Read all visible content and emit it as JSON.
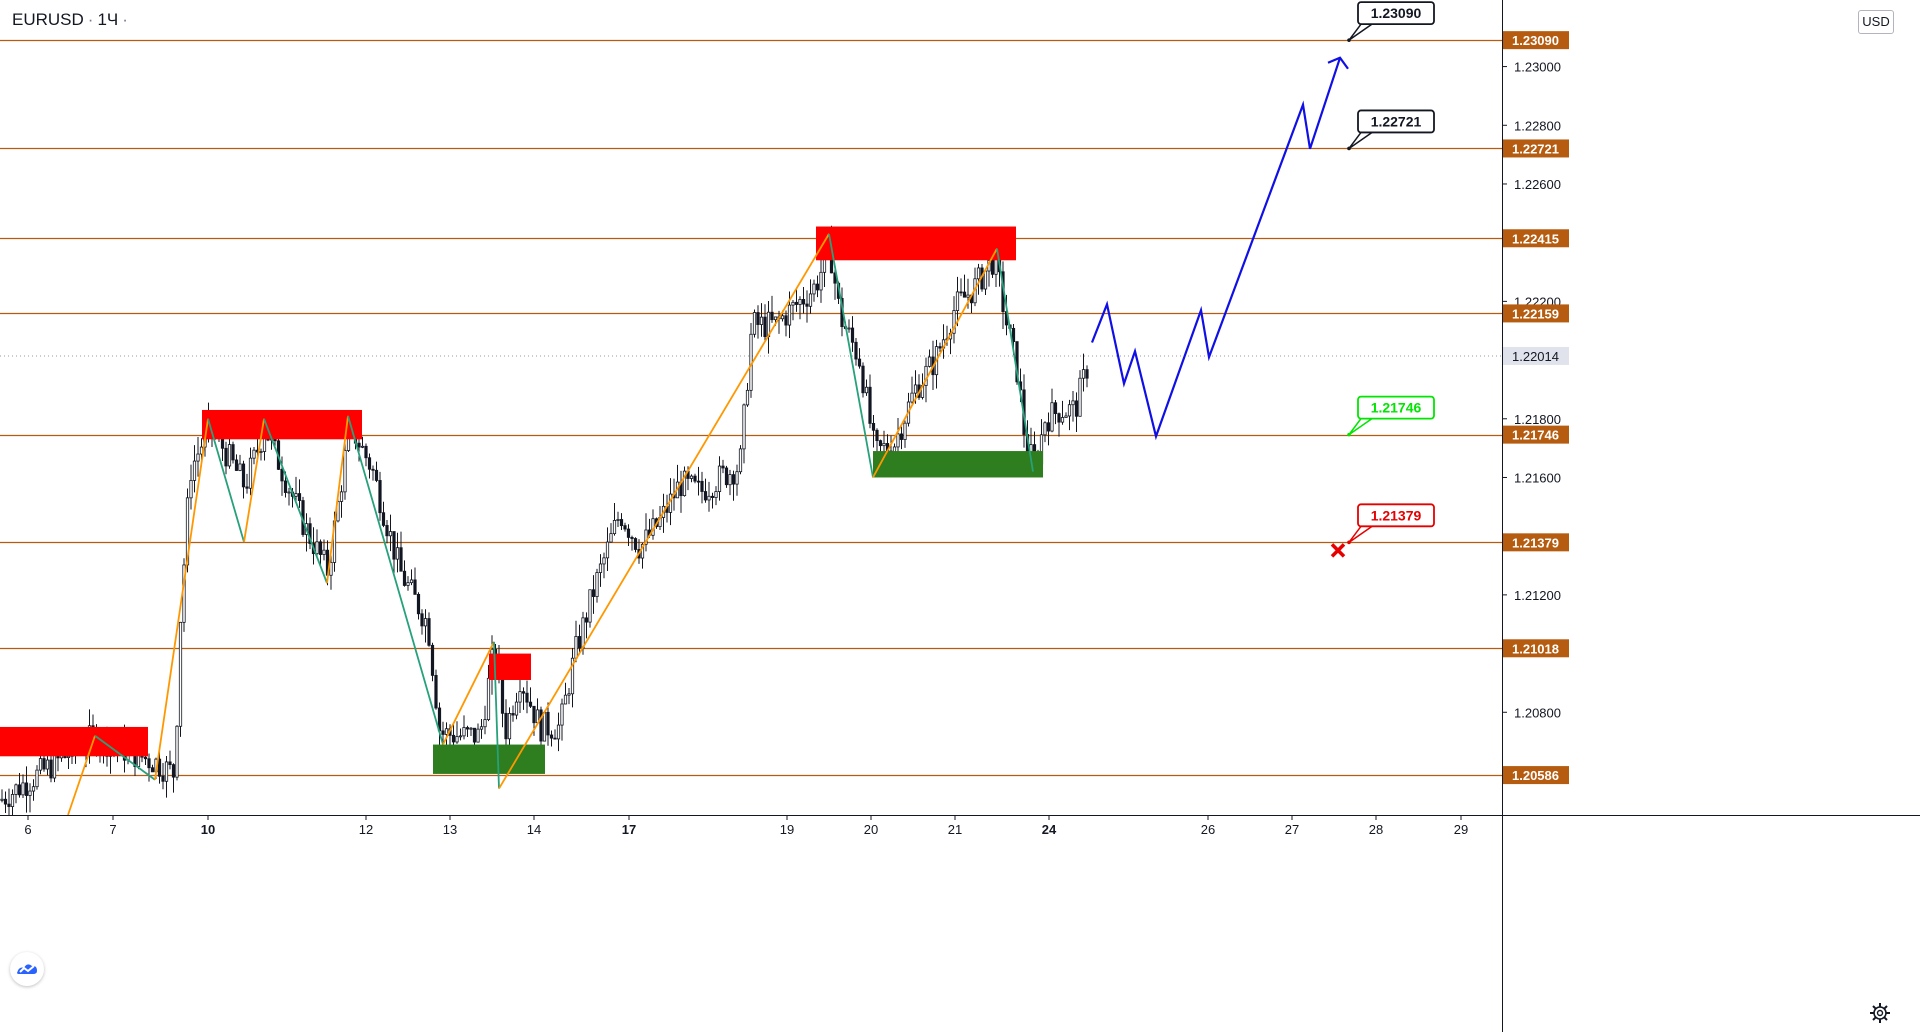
{
  "header": {
    "symbol": "EURUSD",
    "interval": "1Ч",
    "currency": "USD"
  },
  "icons": {
    "logo": "tradingview-logo-icon",
    "settings": "gear-icon",
    "stop": "cross-icon"
  },
  "colors": {
    "level_line": "#b55c10",
    "zone_red": "#ff0000",
    "zone_green": "#2e7d1e",
    "zigzag_orange": "#ff9800",
    "zigzag_teal": "#26a17b",
    "projection": "#1010e6",
    "target_green": "#00e600",
    "stop_red": "#e60000",
    "candle": "#131722"
  },
  "chart_data": {
    "type": "candlestick",
    "ylim": [
      1.2045,
      1.2322
    ],
    "y_ticks": [
      "1.23000",
      "1.22800",
      "1.22600",
      "1.22200",
      "1.21800",
      "1.21600",
      "1.21200",
      "1.20800"
    ],
    "x_ticks": [
      {
        "label": "6",
        "bold": false
      },
      {
        "label": "7",
        "bold": false
      },
      {
        "label": "10",
        "bold": true
      },
      {
        "label": "12",
        "bold": false
      },
      {
        "label": "13",
        "bold": false
      },
      {
        "label": "14",
        "bold": false
      },
      {
        "label": "17",
        "bold": true
      },
      {
        "label": "19",
        "bold": false
      },
      {
        "label": "20",
        "bold": false
      },
      {
        "label": "21",
        "bold": false
      },
      {
        "label": "24",
        "bold": true
      },
      {
        "label": "26",
        "bold": false
      },
      {
        "label": "27",
        "bold": false
      },
      {
        "label": "28",
        "bold": false
      },
      {
        "label": "29",
        "bold": false
      }
    ],
    "levels": [
      "1.23090",
      "1.22721",
      "1.22415",
      "1.22159",
      "1.21746",
      "1.21379",
      "1.21018",
      "1.20586"
    ],
    "current_price": "1.22014",
    "price_path_anchors": [
      [
        0,
        1.205
      ],
      [
        95,
        1.2072
      ],
      [
        118,
        1.2068
      ],
      [
        155,
        1.2063
      ],
      [
        175,
        1.2059
      ],
      [
        180,
        1.211
      ],
      [
        190,
        1.2162
      ],
      [
        210,
        1.2178
      ],
      [
        245,
        1.2157
      ],
      [
        265,
        1.2177
      ],
      [
        305,
        1.2143
      ],
      [
        328,
        1.2128
      ],
      [
        350,
        1.2178
      ],
      [
        372,
        1.2163
      ],
      [
        400,
        1.2128
      ],
      [
        428,
        1.211
      ],
      [
        440,
        1.2073
      ],
      [
        460,
        1.2072
      ],
      [
        480,
        1.2072
      ],
      [
        495,
        1.2103
      ],
      [
        505,
        1.2073
      ],
      [
        520,
        1.2092
      ],
      [
        540,
        1.2075
      ],
      [
        560,
        1.2075
      ],
      [
        575,
        1.21
      ],
      [
        595,
        1.2123
      ],
      [
        620,
        1.2148
      ],
      [
        640,
        1.2136
      ],
      [
        660,
        1.2145
      ],
      [
        680,
        1.2158
      ],
      [
        700,
        1.2155
      ],
      [
        720,
        1.216
      ],
      [
        740,
        1.2164
      ],
      [
        752,
        1.2212
      ],
      [
        775,
        1.2212
      ],
      [
        800,
        1.222
      ],
      [
        815,
        1.2225
      ],
      [
        830,
        1.2238
      ],
      [
        840,
        1.2215
      ],
      [
        860,
        1.22
      ],
      [
        875,
        1.2168
      ],
      [
        895,
        1.2172
      ],
      [
        915,
        1.219
      ],
      [
        935,
        1.22
      ],
      [
        955,
        1.2218
      ],
      [
        975,
        1.2225
      ],
      [
        995,
        1.2235
      ],
      [
        1005,
        1.2215
      ],
      [
        1018,
        1.2195
      ],
      [
        1025,
        1.2173
      ],
      [
        1035,
        1.2163
      ],
      [
        1045,
        1.218
      ],
      [
        1060,
        1.2183
      ],
      [
        1075,
        1.2183
      ],
      [
        1090,
        1.2201
      ]
    ],
    "zones": [
      {
        "kind": "supply",
        "x0": 0,
        "x1": 148,
        "top": 1.2075,
        "bottom": 1.2065
      },
      {
        "kind": "supply",
        "x0": 202,
        "x1": 362,
        "top": 1.2183,
        "bottom": 1.2173
      },
      {
        "kind": "supply",
        "x0": 489,
        "x1": 531,
        "top": 1.21,
        "bottom": 1.2091
      },
      {
        "kind": "demand",
        "x0": 433,
        "x1": 545,
        "top": 1.2069,
        "bottom": 1.2059
      },
      {
        "kind": "supply",
        "x0": 816,
        "x1": 1016,
        "top": 1.22455,
        "bottom": 1.2234
      },
      {
        "kind": "demand",
        "x0": 873,
        "x1": 1043,
        "top": 1.2169,
        "bottom": 1.216
      }
    ],
    "zigzag": [
      {
        "color": "orange",
        "points": [
          [
            68,
            1.2045
          ],
          [
            95,
            1.2072
          ]
        ]
      },
      {
        "color": "teal",
        "points": [
          [
            95,
            1.2072
          ],
          [
            155,
            1.2057
          ]
        ]
      },
      {
        "color": "orange",
        "points": [
          [
            155,
            1.2057
          ],
          [
            208,
            1.218
          ]
        ]
      },
      {
        "color": "teal",
        "points": [
          [
            208,
            1.218
          ],
          [
            244,
            1.2138
          ]
        ]
      },
      {
        "color": "orange",
        "points": [
          [
            244,
            1.2138
          ],
          [
            264,
            1.218
          ]
        ]
      },
      {
        "color": "teal",
        "points": [
          [
            264,
            1.218
          ],
          [
            327,
            1.2124
          ]
        ]
      },
      {
        "color": "orange",
        "points": [
          [
            327,
            1.2124
          ],
          [
            348,
            1.2181
          ]
        ]
      },
      {
        "color": "teal",
        "points": [
          [
            348,
            1.2181
          ],
          [
            443,
            1.2069
          ]
        ]
      },
      {
        "color": "orange",
        "points": [
          [
            443,
            1.2069
          ],
          [
            494,
            1.2104
          ]
        ]
      },
      {
        "color": "teal",
        "points": [
          [
            494,
            1.2104
          ],
          [
            499,
            1.2054
          ]
        ]
      },
      {
        "color": "orange",
        "points": [
          [
            499,
            1.2054
          ],
          [
            829,
            1.2243
          ]
        ]
      },
      {
        "color": "teal",
        "points": [
          [
            829,
            1.2243
          ],
          [
            873,
            1.216
          ]
        ]
      },
      {
        "color": "orange",
        "points": [
          [
            873,
            1.216
          ],
          [
            997,
            1.2238
          ]
        ]
      },
      {
        "color": "teal",
        "points": [
          [
            997,
            1.2238
          ],
          [
            1033,
            1.2162
          ]
        ]
      }
    ],
    "projection_path": [
      [
        1092,
        1.2206
      ],
      [
        1107,
        1.2219
      ],
      [
        1124,
        1.2192
      ],
      [
        1135,
        1.2203
      ],
      [
        1156,
        1.2174
      ],
      [
        1201,
        1.2217
      ],
      [
        1209,
        1.2201
      ],
      [
        1303,
        1.2287
      ],
      [
        1310,
        1.2272
      ],
      [
        1340,
        1.2303
      ]
    ],
    "callouts": [
      {
        "label": "1.23090",
        "kind": "target"
      },
      {
        "label": "1.22721",
        "kind": "target"
      },
      {
        "label": "1.21746",
        "kind": "entry"
      },
      {
        "label": "1.21379",
        "kind": "stop"
      }
    ]
  }
}
